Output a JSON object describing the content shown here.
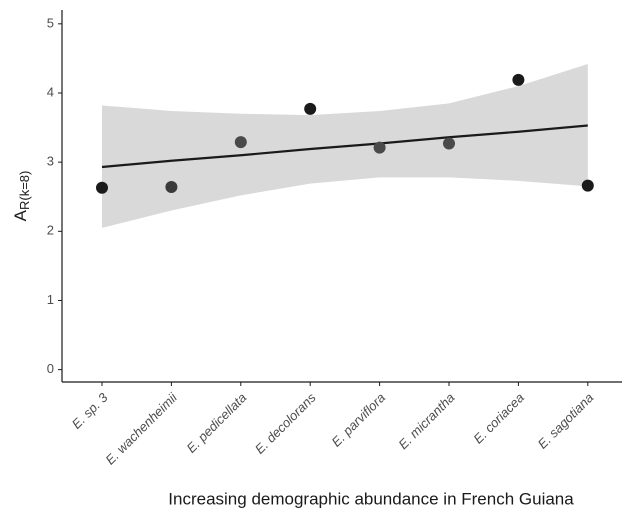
{
  "chart_data": {
    "type": "scatter",
    "x_label": "Increasing demographic abundance in French Guiana",
    "y_label": {
      "main": "A",
      "sub": "R(k=8)"
    },
    "categories": [
      "E. sp. 3",
      "E. wachenheimii",
      "E. pedicellata",
      "E. decolorans",
      "E. parviflora",
      "E. micrantha",
      "E. coriacea",
      "E. sagotiana"
    ],
    "values": [
      2.63,
      2.64,
      3.29,
      3.77,
      3.21,
      3.27,
      4.19,
      2.66
    ],
    "colors": [
      "#1a1a1a",
      "#3a3a3a",
      "#4a4a4a",
      "#1a1a1a",
      "#4a4a4a",
      "#4a4a4a",
      "#1a1a1a",
      "#1a1a1a"
    ],
    "fit": [
      2.93,
      3.02,
      3.1,
      3.19,
      3.27,
      3.36,
      3.44,
      3.53
    ],
    "fit_color": "#1a1a1a",
    "band": {
      "upper": [
        3.82,
        3.74,
        3.7,
        3.68,
        3.74,
        3.85,
        4.1,
        4.42
      ],
      "lower": [
        2.05,
        2.3,
        2.52,
        2.69,
        2.78,
        2.78,
        2.73,
        2.65
      ],
      "color": "#d9d9d9"
    },
    "ylim": [
      -0.15,
      5.2
    ],
    "yticks": [
      0,
      1,
      2,
      3,
      4,
      5
    ]
  }
}
